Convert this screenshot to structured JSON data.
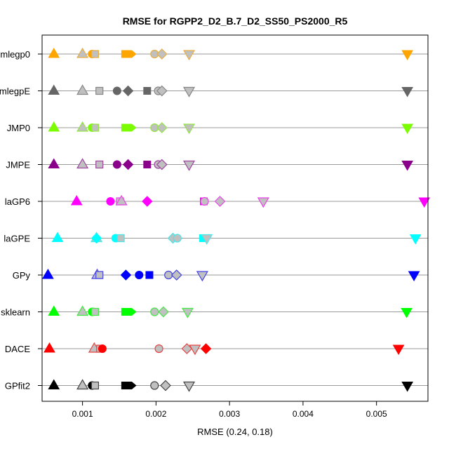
{
  "chart_data": {
    "type": "scatter",
    "title": "RMSE for RGPP2_D2_B.7_D2_SS50_PS2000_R5",
    "xlabel": "RMSE (0.24, 0.18)",
    "ylabel": "",
    "xlim": [
      0.00045,
      0.0057
    ],
    "grid": "horizontal",
    "x_ticks": [
      {
        "value": 0.001,
        "label": "0.001"
      },
      {
        "value": 0.002,
        "label": "0.002"
      },
      {
        "value": 0.003,
        "label": "0.003"
      },
      {
        "value": 0.004,
        "label": "0.004"
      },
      {
        "value": 0.005,
        "label": "0.005"
      }
    ],
    "categories": [
      "mlegp0",
      "mlegpE",
      "JMP0",
      "JMPE",
      "laGP6",
      "laGPE",
      "GPy",
      "sklearn",
      "DACE",
      "GPfit2"
    ],
    "series": [
      {
        "category": "mlegp0",
        "color": "#FFA500",
        "points": [
          {
            "x": 0.00061,
            "shape": "tri-up",
            "filled": true
          },
          {
            "x": 0.001,
            "shape": "tri-up",
            "filled": false
          },
          {
            "x": 0.00113,
            "shape": "circle",
            "filled": true
          },
          {
            "x": 0.00117,
            "shape": "square",
            "filled": false
          },
          {
            "x": 0.00158,
            "shape": "square",
            "filled": true
          },
          {
            "x": 0.00166,
            "shape": "arrow",
            "filled": true
          },
          {
            "x": 0.00198,
            "shape": "circle",
            "filled": false
          },
          {
            "x": 0.00208,
            "shape": "diamond",
            "filled": false
          },
          {
            "x": 0.00245,
            "shape": "tri-down",
            "filled": false
          },
          {
            "x": 0.00542,
            "shape": "tri-down",
            "filled": true
          }
        ]
      },
      {
        "category": "mlegpE",
        "color": "#666666",
        "points": [
          {
            "x": 0.00061,
            "shape": "tri-up",
            "filled": true
          },
          {
            "x": 0.001,
            "shape": "tri-up",
            "filled": false
          },
          {
            "x": 0.00123,
            "shape": "square",
            "filled": false
          },
          {
            "x": 0.00147,
            "shape": "circle",
            "filled": true
          },
          {
            "x": 0.00162,
            "shape": "diamond",
            "filled": true
          },
          {
            "x": 0.00188,
            "shape": "square",
            "filled": true
          },
          {
            "x": 0.00203,
            "shape": "circle",
            "filled": false
          },
          {
            "x": 0.00208,
            "shape": "diamond",
            "filled": false
          },
          {
            "x": 0.00245,
            "shape": "tri-down",
            "filled": false
          },
          {
            "x": 0.00542,
            "shape": "tri-down",
            "filled": true
          }
        ]
      },
      {
        "category": "JMP0",
        "color": "#7CFC00",
        "points": [
          {
            "x": 0.00061,
            "shape": "tri-up",
            "filled": true
          },
          {
            "x": 0.001,
            "shape": "tri-up",
            "filled": false
          },
          {
            "x": 0.00113,
            "shape": "circle",
            "filled": true
          },
          {
            "x": 0.00117,
            "shape": "square",
            "filled": false
          },
          {
            "x": 0.00158,
            "shape": "square",
            "filled": true
          },
          {
            "x": 0.00166,
            "shape": "arrow",
            "filled": true
          },
          {
            "x": 0.00198,
            "shape": "circle",
            "filled": false
          },
          {
            "x": 0.00208,
            "shape": "diamond",
            "filled": false
          },
          {
            "x": 0.00245,
            "shape": "tri-down",
            "filled": false
          },
          {
            "x": 0.00542,
            "shape": "tri-down",
            "filled": true
          }
        ]
      },
      {
        "category": "JMPE",
        "color": "#8B008B",
        "points": [
          {
            "x": 0.00061,
            "shape": "tri-up",
            "filled": true
          },
          {
            "x": 0.001,
            "shape": "tri-up",
            "filled": false
          },
          {
            "x": 0.00123,
            "shape": "square",
            "filled": false
          },
          {
            "x": 0.00147,
            "shape": "circle",
            "filled": true
          },
          {
            "x": 0.00162,
            "shape": "diamond",
            "filled": true
          },
          {
            "x": 0.00188,
            "shape": "square",
            "filled": true
          },
          {
            "x": 0.00203,
            "shape": "circle",
            "filled": false
          },
          {
            "x": 0.00208,
            "shape": "diamond",
            "filled": false
          },
          {
            "x": 0.00245,
            "shape": "tri-down",
            "filled": false
          },
          {
            "x": 0.00542,
            "shape": "tri-down",
            "filled": true
          }
        ]
      },
      {
        "category": "laGP6",
        "color": "#FF00FF",
        "points": [
          {
            "x": 0.00092,
            "shape": "tri-up",
            "filled": true
          },
          {
            "x": 0.00138,
            "shape": "circle",
            "filled": true
          },
          {
            "x": 0.00151,
            "shape": "square",
            "filled": false
          },
          {
            "x": 0.00153,
            "shape": "tri-up",
            "filled": false
          },
          {
            "x": 0.00188,
            "shape": "diamond",
            "filled": true
          },
          {
            "x": 0.00265,
            "shape": "square",
            "filled": true
          },
          {
            "x": 0.00266,
            "shape": "circle",
            "filled": false
          },
          {
            "x": 0.00287,
            "shape": "diamond",
            "filled": false
          },
          {
            "x": 0.00346,
            "shape": "tri-down",
            "filled": false
          },
          {
            "x": 0.00565,
            "shape": "tri-down",
            "filled": true
          }
        ]
      },
      {
        "category": "laGPE",
        "color": "#00FFFF",
        "points": [
          {
            "x": 0.00066,
            "shape": "tri-up",
            "filled": true
          },
          {
            "x": 0.00119,
            "shape": "tri-up",
            "filled": false
          },
          {
            "x": 0.00119,
            "shape": "diamond",
            "filled": true
          },
          {
            "x": 0.00145,
            "shape": "circle",
            "filled": true
          },
          {
            "x": 0.00152,
            "shape": "square",
            "filled": false
          },
          {
            "x": 0.00223,
            "shape": "diamond",
            "filled": false
          },
          {
            "x": 0.00229,
            "shape": "circle",
            "filled": false
          },
          {
            "x": 0.00264,
            "shape": "square",
            "filled": true
          },
          {
            "x": 0.00269,
            "shape": "tri-down",
            "filled": false
          },
          {
            "x": 0.00553,
            "shape": "tri-down",
            "filled": true
          }
        ]
      },
      {
        "category": "GPy",
        "color": "#0000FF",
        "points": [
          {
            "x": 0.00053,
            "shape": "tri-up",
            "filled": true
          },
          {
            "x": 0.0012,
            "shape": "tri-up",
            "filled": false
          },
          {
            "x": 0.00123,
            "shape": "square",
            "filled": false
          },
          {
            "x": 0.00159,
            "shape": "diamond",
            "filled": true
          },
          {
            "x": 0.00177,
            "shape": "circle",
            "filled": true
          },
          {
            "x": 0.00191,
            "shape": "square",
            "filled": true
          },
          {
            "x": 0.00217,
            "shape": "circle",
            "filled": false
          },
          {
            "x": 0.00228,
            "shape": "diamond",
            "filled": false
          },
          {
            "x": 0.00263,
            "shape": "tri-down",
            "filled": false
          },
          {
            "x": 0.00551,
            "shape": "tri-down",
            "filled": true
          }
        ]
      },
      {
        "category": "sklearn",
        "color": "#00FF00",
        "points": [
          {
            "x": 0.00061,
            "shape": "tri-up",
            "filled": true
          },
          {
            "x": 0.001,
            "shape": "tri-up",
            "filled": false
          },
          {
            "x": 0.00113,
            "shape": "circle",
            "filled": true
          },
          {
            "x": 0.00117,
            "shape": "square",
            "filled": false
          },
          {
            "x": 0.00158,
            "shape": "square",
            "filled": true
          },
          {
            "x": 0.00166,
            "shape": "arrow",
            "filled": true
          },
          {
            "x": 0.00198,
            "shape": "circle",
            "filled": false
          },
          {
            "x": 0.0021,
            "shape": "diamond",
            "filled": false
          },
          {
            "x": 0.00243,
            "shape": "tri-down",
            "filled": false
          },
          {
            "x": 0.00541,
            "shape": "tri-down",
            "filled": true
          }
        ]
      },
      {
        "category": "DACE",
        "color": "#FF0000",
        "points": [
          {
            "x": 0.00055,
            "shape": "tri-up",
            "filled": true
          },
          {
            "x": 0.00116,
            "shape": "tri-up",
            "filled": false
          },
          {
            "x": 0.00124,
            "shape": "square",
            "filled": false
          },
          {
            "x": 0.00127,
            "shape": "circle",
            "filled": true
          },
          {
            "x": 0.00204,
            "shape": "circle",
            "filled": false
          },
          {
            "x": 0.00242,
            "shape": "diamond",
            "filled": false
          },
          {
            "x": 0.00253,
            "shape": "tri-down",
            "filled": false
          },
          {
            "x": 0.00268,
            "shape": "diamond",
            "filled": true
          },
          {
            "x": 0.0053,
            "shape": "tri-down",
            "filled": true
          }
        ]
      },
      {
        "category": "GPfit2",
        "color": "#000000",
        "points": [
          {
            "x": 0.00061,
            "shape": "tri-up",
            "filled": true
          },
          {
            "x": 0.001,
            "shape": "tri-up",
            "filled": false
          },
          {
            "x": 0.00113,
            "shape": "circle",
            "filled": true
          },
          {
            "x": 0.00117,
            "shape": "square",
            "filled": false
          },
          {
            "x": 0.00158,
            "shape": "square",
            "filled": true
          },
          {
            "x": 0.00166,
            "shape": "arrow",
            "filled": true
          },
          {
            "x": 0.00198,
            "shape": "circle",
            "filled": false
          },
          {
            "x": 0.00213,
            "shape": "diamond",
            "filled": false
          },
          {
            "x": 0.00245,
            "shape": "tri-down",
            "filled": false
          },
          {
            "x": 0.00542,
            "shape": "tri-down",
            "filled": true
          }
        ]
      }
    ]
  }
}
